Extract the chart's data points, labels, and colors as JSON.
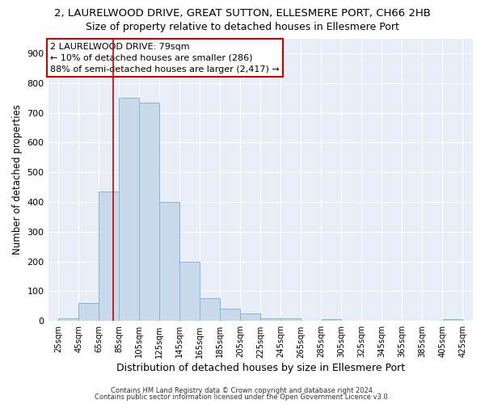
{
  "title": "2, LAURELWOOD DRIVE, GREAT SUTTON, ELLESMERE PORT, CH66 2HB",
  "subtitle": "Size of property relative to detached houses in Ellesmere Port",
  "xlabel": "Distribution of detached houses by size in Ellesmere Port",
  "ylabel": "Number of detached properties",
  "bin_edges": [
    25,
    45,
    65,
    85,
    105,
    125,
    145,
    165,
    185,
    205,
    225,
    245,
    265,
    285,
    305,
    325,
    345,
    365,
    385,
    405,
    425
  ],
  "bar_heights": [
    10,
    60,
    435,
    750,
    735,
    400,
    198,
    78,
    42,
    25,
    10,
    8,
    0,
    5,
    0,
    0,
    0,
    0,
    0,
    5
  ],
  "bar_color": "#c9d9ec",
  "bar_edgecolor": "#8ab4d4",
  "vline_x": 79,
  "vline_color": "#cc0000",
  "ylim": [
    0,
    950
  ],
  "yticks": [
    0,
    100,
    200,
    300,
    400,
    500,
    600,
    700,
    800,
    900
  ],
  "annotation_title": "2 LAURELWOOD DRIVE: 79sqm",
  "annotation_line1": "← 10% of detached houses are smaller (286)",
  "annotation_line2": "88% of semi-detached houses are larger (2,417) →",
  "annotation_box_facecolor": "#ffffff",
  "annotation_box_edgecolor": "#cc0000",
  "footnote1": "Contains HM Land Registry data © Crown copyright and database right 2024.",
  "footnote2": "Contains public sector information licensed under the Open Government Licence v3.0.",
  "background_color": "#ffffff",
  "plot_bg_color": "#e8eef7",
  "grid_color": "#ffffff",
  "title_fontsize": 9.5,
  "subtitle_fontsize": 9
}
